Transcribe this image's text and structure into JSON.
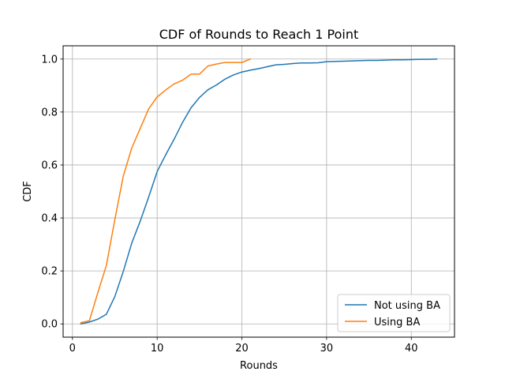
{
  "chart_data": {
    "type": "line",
    "title": "CDF of Rounds to Reach 1 Point",
    "xlabel": "Rounds",
    "ylabel": "CDF",
    "xlim": [
      -1.1,
      45.1
    ],
    "ylim": [
      -0.05,
      1.05
    ],
    "xticks": [
      0,
      10,
      20,
      30,
      40
    ],
    "yticks": [
      0.0,
      0.2,
      0.4,
      0.6,
      0.8,
      1.0
    ],
    "xtick_labels": [
      "0",
      "10",
      "20",
      "30",
      "40"
    ],
    "ytick_labels": [
      "0.0",
      "0.2",
      "0.4",
      "0.6",
      "0.8",
      "1.0"
    ],
    "grid": true,
    "legend_position": "lower-right",
    "series": [
      {
        "name": "Not using BA",
        "color": "#1f77b4",
        "x": [
          1,
          2,
          3,
          4,
          5,
          6,
          7,
          8,
          9,
          10,
          11,
          12,
          13,
          14,
          15,
          16,
          17,
          18,
          19,
          20,
          21,
          22,
          23,
          24,
          25,
          26,
          27,
          28,
          29,
          30,
          31,
          32,
          33,
          34,
          35,
          36,
          37,
          38,
          39,
          40,
          41,
          42,
          43
        ],
        "y": [
          0.0,
          0.007,
          0.018,
          0.036,
          0.103,
          0.198,
          0.305,
          0.388,
          0.479,
          0.575,
          0.638,
          0.697,
          0.761,
          0.816,
          0.855,
          0.884,
          0.902,
          0.924,
          0.94,
          0.951,
          0.958,
          0.964,
          0.971,
          0.978,
          0.98,
          0.983,
          0.985,
          0.985,
          0.986,
          0.99,
          0.991,
          0.992,
          0.993,
          0.994,
          0.995,
          0.995,
          0.996,
          0.997,
          0.997,
          0.998,
          0.999,
          0.999,
          1.0
        ]
      },
      {
        "name": "Using BA",
        "color": "#ff7f0e",
        "x": [
          1,
          2,
          3,
          4,
          5,
          6,
          7,
          8,
          9,
          10,
          11,
          12,
          13,
          14,
          15,
          16,
          17,
          18,
          19,
          20,
          21
        ],
        "y": [
          0.005,
          0.012,
          0.118,
          0.22,
          0.393,
          0.558,
          0.664,
          0.738,
          0.812,
          0.857,
          0.883,
          0.906,
          0.92,
          0.943,
          0.943,
          0.974,
          0.981,
          0.987,
          0.987,
          0.987,
          1.0
        ]
      }
    ]
  }
}
